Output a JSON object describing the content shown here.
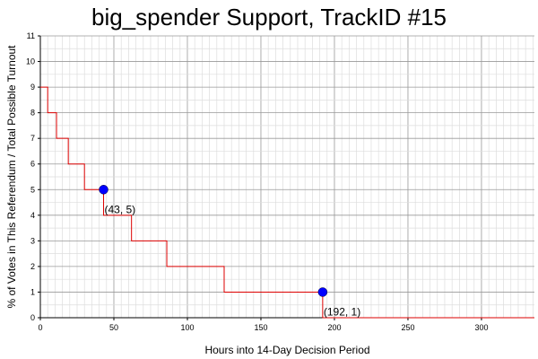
{
  "chart_data": {
    "type": "line",
    "title": "big_spender Support, TrackID #15",
    "xlabel": "Hours into 14-Day Decision Period",
    "ylabel": "% of Votes in This Referendum / Total Possible Turnout",
    "xlim": [
      0,
      336
    ],
    "ylim": [
      0,
      11
    ],
    "x_ticks": [
      0,
      50,
      100,
      150,
      200,
      250,
      300
    ],
    "y_ticks": [
      0,
      1,
      2,
      3,
      4,
      5,
      6,
      7,
      8,
      9,
      10,
      11
    ],
    "grid": true,
    "series": [
      {
        "color": "#dd0000",
        "step": true,
        "points": [
          [
            0,
            9
          ],
          [
            5,
            9
          ],
          [
            5,
            8
          ],
          [
            11,
            8
          ],
          [
            11,
            7
          ],
          [
            19,
            7
          ],
          [
            19,
            6
          ],
          [
            30,
            6
          ],
          [
            30,
            5
          ],
          [
            43,
            5
          ],
          [
            43,
            4
          ],
          [
            62,
            4
          ],
          [
            62,
            3
          ],
          [
            86,
            3
          ],
          [
            86,
            2
          ],
          [
            125,
            2
          ],
          [
            125,
            1
          ],
          [
            192,
            1
          ],
          [
            192,
            0
          ],
          [
            336,
            0
          ]
        ]
      }
    ],
    "annotations": [
      {
        "x": 43,
        "y": 5,
        "label": "(43, 5)",
        "marker_color": "#0000ff"
      },
      {
        "x": 192,
        "y": 1,
        "label": "(192, 1)",
        "marker_color": "#0000ff"
      }
    ]
  }
}
